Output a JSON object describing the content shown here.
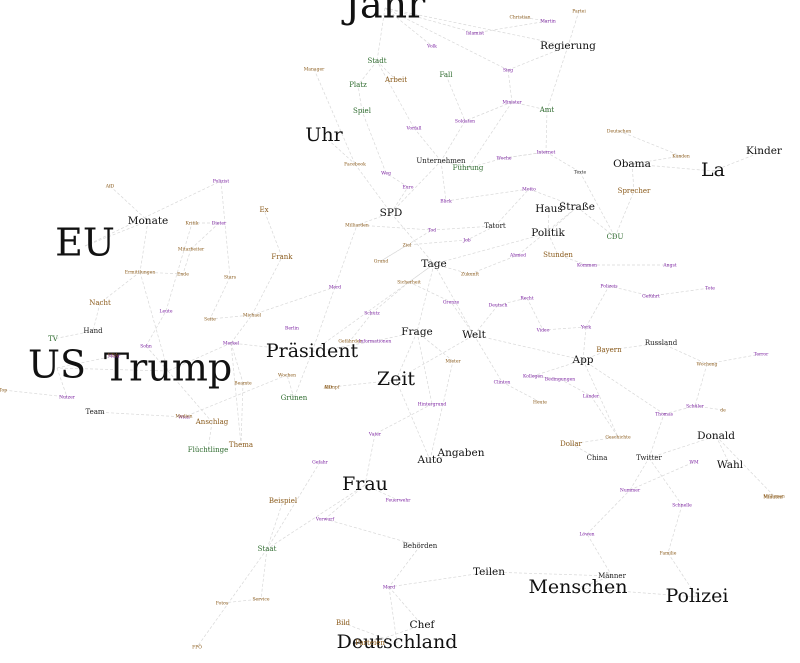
{
  "graph": {
    "edge_color": "#d8d8d8",
    "colors": {
      "black": "#111111",
      "purple": "#7a1fa0",
      "brown": "#8a5a1a",
      "green": "#2e6b2e",
      "dark": "#222222"
    },
    "words": [
      {
        "id": "jahr",
        "text": "Jahr",
        "size": "xl",
        "color": "black"
      },
      {
        "id": "us",
        "text": "US",
        "size": "xl",
        "color": "black"
      },
      {
        "id": "trump",
        "text": "Trump",
        "size": "xl",
        "color": "black"
      },
      {
        "id": "eu",
        "text": "EU",
        "size": "xl",
        "color": "black"
      },
      {
        "id": "menschen",
        "text": "Menschen",
        "size": "lg",
        "color": "black"
      },
      {
        "id": "la",
        "text": "La",
        "size": "lg",
        "color": "black"
      },
      {
        "id": "praesident",
        "text": "Präsident",
        "size": "lg",
        "color": "black"
      },
      {
        "id": "zeit",
        "text": "Zeit",
        "size": "lg",
        "color": "black"
      },
      {
        "id": "uhr",
        "text": "Uhr",
        "size": "lg",
        "color": "black"
      },
      {
        "id": "polizei",
        "text": "Polizei",
        "size": "lg",
        "color": "black"
      },
      {
        "id": "deutschland",
        "text": "Deutschland",
        "size": "lg",
        "color": "black"
      },
      {
        "id": "frau",
        "text": "Frau",
        "size": "lg",
        "color": "black"
      },
      {
        "id": "regierung",
        "text": "Regierung",
        "size": "md",
        "color": "black"
      },
      {
        "id": "kinder",
        "text": "Kinder",
        "size": "md",
        "color": "black"
      },
      {
        "id": "monate",
        "text": "Monate",
        "size": "md",
        "color": "black"
      },
      {
        "id": "spd",
        "text": "SPD",
        "size": "md",
        "color": "black"
      },
      {
        "id": "tage",
        "text": "Tage",
        "size": "md",
        "color": "black"
      },
      {
        "id": "politik",
        "text": "Politik",
        "size": "md",
        "color": "black"
      },
      {
        "id": "strasse",
        "text": "Straße",
        "size": "md",
        "color": "black"
      },
      {
        "id": "haus",
        "text": "Haus",
        "size": "md",
        "color": "black"
      },
      {
        "id": "welt",
        "text": "Welt",
        "size": "md",
        "color": "black"
      },
      {
        "id": "frage",
        "text": "Frage",
        "size": "md",
        "color": "black"
      },
      {
        "id": "app",
        "text": "App",
        "size": "md",
        "color": "black"
      },
      {
        "id": "auto",
        "text": "Auto",
        "size": "md",
        "color": "black"
      },
      {
        "id": "angaben",
        "text": "Angaben",
        "size": "md",
        "color": "black"
      },
      {
        "id": "chef",
        "text": "Chef",
        "size": "md",
        "color": "black"
      },
      {
        "id": "teilen",
        "text": "Teilen",
        "size": "md",
        "color": "black"
      },
      {
        "id": "donald",
        "text": "Donald",
        "size": "md",
        "color": "black"
      },
      {
        "id": "wahl",
        "text": "Wahl",
        "size": "md",
        "color": "black"
      },
      {
        "id": "obama",
        "text": "Obama",
        "size": "md",
        "color": "black"
      },
      {
        "id": "stadt",
        "text": "Stadt",
        "size": "sm",
        "color": "green"
      },
      {
        "id": "fall",
        "text": "Fall",
        "size": "sm",
        "color": "green"
      },
      {
        "id": "platz",
        "text": "Platz",
        "size": "sm",
        "color": "green"
      },
      {
        "id": "arbeit",
        "text": "Arbeit",
        "size": "sm",
        "color": "brown"
      },
      {
        "id": "spiel",
        "text": "Spiel",
        "size": "sm",
        "color": "green"
      },
      {
        "id": "amt",
        "text": "Amt",
        "size": "sm",
        "color": "green"
      },
      {
        "id": "fuehrung",
        "text": "Führung",
        "size": "sm",
        "color": "green"
      },
      {
        "id": "unternehmen",
        "text": "Unternehmen",
        "size": "sm",
        "color": "dark"
      },
      {
        "id": "tatort",
        "text": "Tatort",
        "size": "sm",
        "color": "dark"
      },
      {
        "id": "stunden",
        "text": "Stunden",
        "size": "sm",
        "color": "brown"
      },
      {
        "id": "cdu",
        "text": "CDU",
        "size": "sm",
        "color": "green"
      },
      {
        "id": "sprecher",
        "text": "Sprecher",
        "size": "sm",
        "color": "brown"
      },
      {
        "id": "frank",
        "text": "Frank",
        "size": "sm",
        "color": "brown"
      },
      {
        "id": "ex",
        "text": "Ex",
        "size": "sm",
        "color": "brown"
      },
      {
        "id": "nacht",
        "text": "Nacht",
        "size": "sm",
        "color": "brown"
      },
      {
        "id": "hand",
        "text": "Hand",
        "size": "sm",
        "color": "dark"
      },
      {
        "id": "tv",
        "text": "TV",
        "size": "sm",
        "color": "green"
      },
      {
        "id": "team",
        "text": "Team",
        "size": "sm",
        "color": "dark"
      },
      {
        "id": "anschlag",
        "text": "Anschlag",
        "size": "sm",
        "color": "brown"
      },
      {
        "id": "fluechtlinge",
        "text": "Flüchtlinge",
        "size": "sm",
        "color": "green"
      },
      {
        "id": "thema",
        "text": "Thema",
        "size": "sm",
        "color": "brown"
      },
      {
        "id": "gruenen",
        "text": "Grünen",
        "size": "sm",
        "color": "green"
      },
      {
        "id": "bayern",
        "text": "Bayern",
        "size": "sm",
        "color": "brown"
      },
      {
        "id": "russland",
        "text": "Russland",
        "size": "sm",
        "color": "dark"
      },
      {
        "id": "dollar",
        "text": "Dollar",
        "size": "sm",
        "color": "brown"
      },
      {
        "id": "china",
        "text": "China",
        "size": "sm",
        "color": "dark"
      },
      {
        "id": "twitter",
        "text": "Twitter",
        "size": "sm",
        "color": "dark"
      },
      {
        "id": "staat",
        "text": "Staat",
        "size": "sm",
        "color": "green"
      },
      {
        "id": "beispiel",
        "text": "Beispiel",
        "size": "sm",
        "color": "brown"
      },
      {
        "id": "behoerden",
        "text": "Behörden",
        "size": "sm",
        "color": "dark"
      },
      {
        "id": "maenner",
        "text": "Männer",
        "size": "sm",
        "color": "dark"
      },
      {
        "id": "bild",
        "text": "Bild",
        "size": "sm",
        "color": "brown"
      },
      {
        "id": "parteien",
        "text": "Parteien",
        "size": "sm",
        "color": "brown"
      },
      {
        "id": "christian",
        "text": "Christian",
        "size": "xs",
        "color": "brown"
      },
      {
        "id": "martin",
        "text": "Martin",
        "size": "xs",
        "color": "purple"
      },
      {
        "id": "partei",
        "text": "Partei",
        "size": "xs",
        "color": "brown"
      },
      {
        "id": "volk",
        "text": "Volk",
        "size": "xs",
        "color": "purple"
      },
      {
        "id": "islamist",
        "text": "Islamist",
        "size": "xs",
        "color": "purple"
      },
      {
        "id": "sieg",
        "text": "Sieg",
        "size": "xs",
        "color": "purple"
      },
      {
        "id": "manager",
        "text": "Manager",
        "size": "xs",
        "color": "brown"
      },
      {
        "id": "minister",
        "text": "Minister",
        "size": "xs",
        "color": "purple"
      },
      {
        "id": "soldaten",
        "text": "Soldaten",
        "size": "xs",
        "color": "purple"
      },
      {
        "id": "vorfall",
        "text": "Vorfall",
        "size": "xs",
        "color": "purple"
      },
      {
        "id": "deutschen",
        "text": "Deutschen",
        "size": "xs",
        "color": "brown"
      },
      {
        "id": "internet",
        "text": "Internet",
        "size": "xs",
        "color": "purple"
      },
      {
        "id": "kunden",
        "text": "Kunden",
        "size": "xs",
        "color": "brown"
      },
      {
        "id": "woche",
        "text": "Woche",
        "size": "xs",
        "color": "purple"
      },
      {
        "id": "facebook",
        "text": "Facebook",
        "size": "xs",
        "color": "brown"
      },
      {
        "id": "weg",
        "text": "Weg",
        "size": "xs",
        "color": "purple"
      },
      {
        "id": "texte",
        "text": "Texte",
        "size": "xs",
        "color": "dark"
      },
      {
        "id": "afd",
        "text": "AfD",
        "size": "xs",
        "color": "brown"
      },
      {
        "id": "polizist",
        "text": "Polizist",
        "size": "xs",
        "color": "purple"
      },
      {
        "id": "euro",
        "text": "Euro",
        "size": "xs",
        "color": "purple"
      },
      {
        "id": "blick",
        "text": "Blick",
        "size": "xs",
        "color": "purple"
      },
      {
        "id": "motto",
        "text": "Motto",
        "size": "xs",
        "color": "purple"
      },
      {
        "id": "tod",
        "text": "Tod",
        "size": "xs",
        "color": "purple"
      },
      {
        "id": "milliarden",
        "text": "Milliarden",
        "size": "xs",
        "color": "brown"
      },
      {
        "id": "kritik",
        "text": "Kritik",
        "size": "xs",
        "color": "brown"
      },
      {
        "id": "dieter",
        "text": "Dieter",
        "size": "xs",
        "color": "purple"
      },
      {
        "id": "ziel",
        "text": "Ziel",
        "size": "xs",
        "color": "brown"
      },
      {
        "id": "mitarbeiter",
        "text": "Mitarbeiter",
        "size": "xs",
        "color": "brown"
      },
      {
        "id": "job",
        "text": "Job",
        "size": "xs",
        "color": "purple"
      },
      {
        "id": "ermittlungen",
        "text": "Ermittlungen",
        "size": "xs",
        "color": "brown"
      },
      {
        "id": "ende",
        "text": "Ende",
        "size": "xs",
        "color": "brown"
      },
      {
        "id": "stars",
        "text": "Stars",
        "size": "xs",
        "color": "brown"
      },
      {
        "id": "grund",
        "text": "Grund",
        "size": "xs",
        "color": "brown"
      },
      {
        "id": "ahmed",
        "text": "Ahmed",
        "size": "xs",
        "color": "purple"
      },
      {
        "id": "kommen",
        "text": "Kommen",
        "size": "xs",
        "color": "purple"
      },
      {
        "id": "angst",
        "text": "Angst",
        "size": "xs",
        "color": "purple"
      },
      {
        "id": "mord",
        "text": "Mord",
        "size": "xs",
        "color": "purple"
      },
      {
        "id": "sicherheit",
        "text": "Sicherheit",
        "size": "xs",
        "color": "brown"
      },
      {
        "id": "zukunft",
        "text": "Zukunft",
        "size": "xs",
        "color": "brown"
      },
      {
        "id": "polizeisi",
        "text": "Polizeis",
        "size": "xs",
        "color": "purple"
      },
      {
        "id": "gefuehrt",
        "text": "Geführt",
        "size": "xs",
        "color": "purple"
      },
      {
        "id": "tote",
        "text": "Tote",
        "size": "xs",
        "color": "purple"
      },
      {
        "id": "michael",
        "text": "Michael",
        "size": "xs",
        "color": "brown"
      },
      {
        "id": "leute",
        "text": "Leute",
        "size": "xs",
        "color": "purple"
      },
      {
        "id": "seite",
        "text": "Seite",
        "size": "xs",
        "color": "brown"
      },
      {
        "id": "grenze",
        "text": "Grenze",
        "size": "xs",
        "color": "purple"
      },
      {
        "id": "schutz",
        "text": "Schutz",
        "size": "xs",
        "color": "purple"
      },
      {
        "id": "deutsch",
        "text": "Deutsch",
        "size": "xs",
        "color": "purple"
      },
      {
        "id": "recht",
        "text": "Recht",
        "size": "xs",
        "color": "purple"
      },
      {
        "id": "informationen",
        "text": "Informationen",
        "size": "xs",
        "color": "purple"
      },
      {
        "id": "york",
        "text": "York",
        "size": "xs",
        "color": "purple"
      },
      {
        "id": "berlin",
        "text": "Berlin",
        "size": "xs",
        "color": "purple"
      },
      {
        "id": "video",
        "text": "Video",
        "size": "xs",
        "color": "purple"
      },
      {
        "id": "merkel",
        "text": "Merkel",
        "size": "xs",
        "color": "purple"
      },
      {
        "id": "gefuehrer",
        "text": "Gefährder",
        "size": "xs",
        "color": "brown"
      },
      {
        "id": "sohn",
        "text": "Sohn",
        "size": "xs",
        "color": "purple"
      },
      {
        "id": "mehr",
        "text": "Mehr",
        "size": "xs",
        "color": "purple"
      },
      {
        "id": "kampf",
        "text": "Kampf",
        "size": "xs",
        "color": "brown"
      },
      {
        "id": "wochen",
        "text": "Wochen",
        "size": "xs",
        "color": "brown"
      },
      {
        "id": "mieter",
        "text": "Mieter",
        "size": "xs",
        "color": "brown"
      },
      {
        "id": "kollegen",
        "text": "Kollegen",
        "size": "xs",
        "color": "purple"
      },
      {
        "id": "bedingungen",
        "text": "Bedingungen",
        "size": "xs",
        "color": "purple"
      },
      {
        "id": "beamte",
        "text": "Beamte",
        "size": "xs",
        "color": "brown"
      },
      {
        "id": "clinton",
        "text": "Clinton",
        "size": "xs",
        "color": "purple"
      },
      {
        "id": "heute",
        "text": "Heute",
        "size": "xs",
        "color": "brown"
      },
      {
        "id": "laender",
        "text": "Länder",
        "size": "xs",
        "color": "purple"
      },
      {
        "id": "internetwoche",
        "text": "Wocheng",
        "size": "xs",
        "color": "brown"
      },
      {
        "id": "gesichte",
        "text": "Geschichte",
        "size": "xs",
        "color": "brown"
      },
      {
        "id": "thomas",
        "text": "Thomas",
        "size": "xs",
        "color": "purple"
      },
      {
        "id": "nutzer",
        "text": "Nutzer",
        "size": "xs",
        "color": "purple"
      },
      {
        "id": "wien",
        "text": "Wien",
        "size": "xs",
        "color": "purple"
      },
      {
        "id": "vater",
        "text": "Vater",
        "size": "xs",
        "color": "purple"
      },
      {
        "id": "feuerwehr",
        "text": "Feuerwehr",
        "size": "xs",
        "color": "purple"
      },
      {
        "id": "nummer",
        "text": "Nummer",
        "size": "xs",
        "color": "purple"
      },
      {
        "id": "schueler",
        "text": "Schüler",
        "size": "xs",
        "color": "purple"
      },
      {
        "id": "familie",
        "text": "Familie",
        "size": "xs",
        "color": "brown"
      },
      {
        "id": "fotos",
        "text": "Fotos",
        "size": "xs",
        "color": "brown"
      },
      {
        "id": "service",
        "text": "Service",
        "size": "xs",
        "color": "brown"
      },
      {
        "id": "wm",
        "text": "WM",
        "size": "xs",
        "color": "purple"
      },
      {
        "id": "de",
        "text": "de",
        "size": "xs",
        "color": "brown"
      },
      {
        "id": "fpoe",
        "text": "FPÖ",
        "size": "xs",
        "color": "brown"
      },
      {
        "id": "top",
        "text": "Top",
        "size": "xs",
        "color": "brown"
      },
      {
        "id": "afd2",
        "text": "AfD",
        "size": "xs",
        "color": "brown"
      },
      {
        "id": "hintergrund",
        "text": "Hintergrund",
        "size": "xs",
        "color": "purple"
      },
      {
        "id": "usa",
        "text": "USA",
        "size": "xs",
        "color": "brown"
      },
      {
        "id": "millionen",
        "text": "Millionen",
        "size": "xs",
        "color": "brown"
      },
      {
        "id": "medien",
        "text": "Medien",
        "size": "xs",
        "color": "brown"
      },
      {
        "id": "gefahr",
        "text": "Gefahr",
        "size": "xs",
        "color": "purple"
      },
      {
        "id": "minuten",
        "text": "Minuten",
        "size": "xs",
        "color": "brown"
      },
      {
        "id": "mord2",
        "text": "Mord",
        "size": "xs",
        "color": "purple"
      },
      {
        "id": "loewen",
        "text": "Löwen",
        "size": "xs",
        "color": "purple"
      },
      {
        "id": "schnelle",
        "text": "Schnelle",
        "size": "xs",
        "color": "purple"
      },
      {
        "id": "vorwurf",
        "text": "Vorwurf",
        "size": "xs",
        "color": "purple"
      },
      {
        "id": "terror",
        "text": "Terror",
        "size": "xs",
        "color": "purple"
      }
    ]
  }
}
